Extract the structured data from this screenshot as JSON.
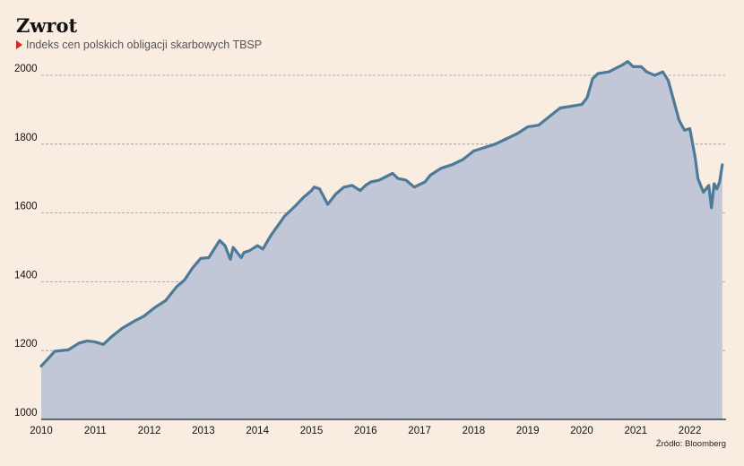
{
  "title": "Zwrot",
  "subtitle": "Indeks cen polskich obligacji skarbowych TBSP",
  "source": "Źródło: Bloomberg",
  "colors": {
    "background": "#f9ede2",
    "line": "#4e7a9a",
    "area": "#c1c7d6",
    "grid": "#9a9a9a",
    "marker": "#e0231c"
  },
  "chart_data": {
    "type": "area",
    "title": "Zwrot",
    "subtitle": "Indeks cen polskich obligacji skarbowych TBSP",
    "xlabel": "",
    "ylabel": "",
    "xlim": [
      2010,
      2022.6
    ],
    "ylim": [
      1000,
      2100
    ],
    "yticks": [
      1000,
      1200,
      1400,
      1600,
      1800,
      2000
    ],
    "xticks": [
      2010,
      2011,
      2012,
      2013,
      2014,
      2015,
      2016,
      2017,
      2018,
      2019,
      2020,
      2021,
      2022
    ],
    "grid": true,
    "series": [
      {
        "x": [
          2010.0,
          2010.1,
          2010.25,
          2010.5,
          2010.7,
          2010.85,
          2011.0,
          2011.15,
          2011.3,
          2011.5,
          2011.75,
          2011.9,
          2012.1,
          2012.3,
          2012.5,
          2012.65,
          2012.8,
          2012.95,
          2013.1,
          2013.3,
          2013.4,
          2013.5,
          2013.55,
          2013.65,
          2013.7,
          2013.75,
          2013.85,
          2014.0,
          2014.1,
          2014.25,
          2014.5,
          2014.7,
          2014.85,
          2015.0,
          2015.05,
          2015.15,
          2015.3,
          2015.45,
          2015.6,
          2015.75,
          2015.9,
          2016.0,
          2016.1,
          2016.25,
          2016.5,
          2016.6,
          2016.75,
          2016.9,
          2017.1,
          2017.2,
          2017.4,
          2017.6,
          2017.8,
          2018.0,
          2018.2,
          2018.4,
          2018.6,
          2018.8,
          2019.0,
          2019.2,
          2019.4,
          2019.6,
          2019.8,
          2020.0,
          2020.1,
          2020.2,
          2020.3,
          2020.5,
          2020.75,
          2020.85,
          2020.95,
          2021.1,
          2021.2,
          2021.35,
          2021.5,
          2021.6,
          2021.8,
          2021.9,
          2022.0,
          2022.1,
          2022.15,
          2022.25,
          2022.35,
          2022.4,
          2022.45,
          2022.5,
          2022.55,
          2022.6
        ],
        "values": [
          1155,
          1172,
          1198,
          1202,
          1222,
          1228,
          1225,
          1218,
          1240,
          1265,
          1288,
          1300,
          1325,
          1345,
          1385,
          1405,
          1440,
          1468,
          1470,
          1520,
          1505,
          1465,
          1500,
          1480,
          1470,
          1485,
          1490,
          1505,
          1495,
          1535,
          1590,
          1620,
          1645,
          1665,
          1675,
          1670,
          1625,
          1655,
          1675,
          1680,
          1665,
          1680,
          1690,
          1695,
          1715,
          1700,
          1695,
          1675,
          1690,
          1710,
          1730,
          1740,
          1755,
          1780,
          1790,
          1800,
          1815,
          1830,
          1850,
          1855,
          1880,
          1905,
          1910,
          1915,
          1935,
          1990,
          2005,
          2010,
          2030,
          2040,
          2025,
          2025,
          2010,
          2000,
          2010,
          1985,
          1870,
          1840,
          1845,
          1760,
          1700,
          1660,
          1680,
          1615,
          1685,
          1670,
          1690,
          1740
        ]
      }
    ]
  }
}
